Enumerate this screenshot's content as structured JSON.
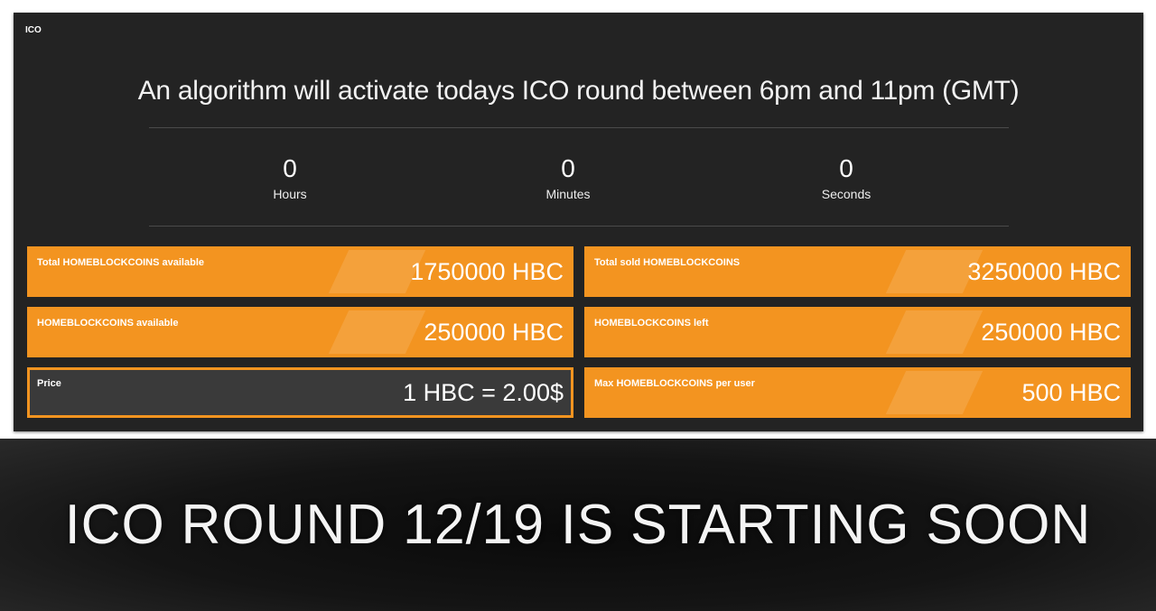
{
  "panel": {
    "title": "ICO"
  },
  "headline": "An algorithm will activate todays ICO round between 6pm and 11pm (GMT)",
  "countdown": [
    {
      "value": "0",
      "label": "Hours"
    },
    {
      "value": "0",
      "label": "Minutes"
    },
    {
      "value": "0",
      "label": "Seconds"
    }
  ],
  "cards": [
    {
      "label": "Total HOMEBLOCKCOINS available",
      "value": "1750000 HBC"
    },
    {
      "label": "Total sold HOMEBLOCKCOINS",
      "value": "3250000 HBC"
    },
    {
      "label": "HOMEBLOCKCOINS available",
      "value": "250000 HBC"
    },
    {
      "label": "HOMEBLOCKCOINS left",
      "value": "250000 HBC"
    },
    {
      "label": "Price",
      "value": "1 HBC = 2.00$"
    },
    {
      "label": "Max HOMEBLOCKCOINS per user",
      "value": "500 HBC"
    }
  ],
  "colors": {
    "accent": "#f39420",
    "panel": "#232323"
  },
  "banner": "ICO ROUND 12/19 IS STARTING SOON"
}
